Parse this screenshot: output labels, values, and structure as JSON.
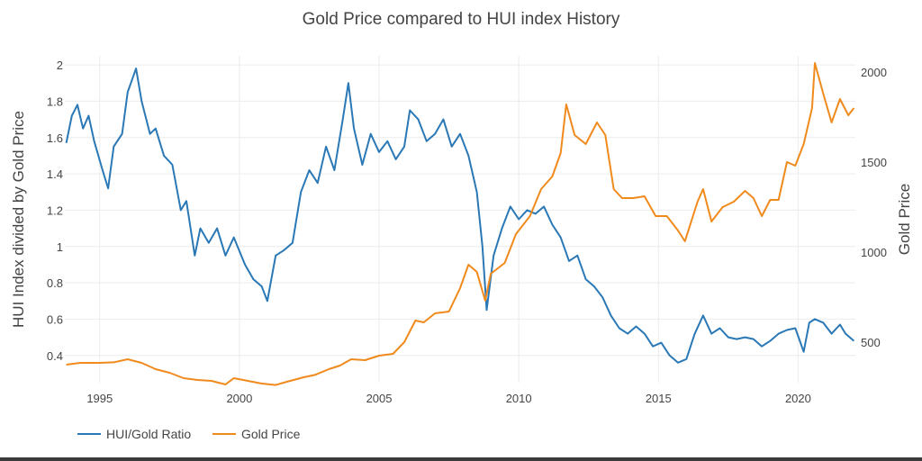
{
  "chart_data": {
    "type": "line",
    "title": "Gold Price compared to HUI index History",
    "ylabel": "HUI Index divided by Gold Price",
    "y2label": "Gold Price",
    "xlim": [
      1993.75,
      2022.05
    ],
    "ylim": [
      0.25,
      2.05
    ],
    "y2lim": [
      275,
      2090
    ],
    "x_ticks": [
      "1995",
      "2000",
      "2005",
      "2010",
      "2015",
      "2020"
    ],
    "y_ticks": [
      "0.4",
      "0.6",
      "0.8",
      "1",
      "1.2",
      "1.4",
      "1.6",
      "1.8",
      "2"
    ],
    "y2_ticks": [
      "500",
      "1000",
      "1500",
      "2000"
    ],
    "legend_position": "bottom-left",
    "grid": true,
    "series": [
      {
        "name": "HUI/Gold Ratio",
        "axis": "left",
        "color": "#2a78b5",
        "points": [
          [
            1993.8,
            1.57
          ],
          [
            1994.0,
            1.72
          ],
          [
            1994.2,
            1.78
          ],
          [
            1994.4,
            1.65
          ],
          [
            1994.6,
            1.72
          ],
          [
            1994.8,
            1.58
          ],
          [
            1995.1,
            1.42
          ],
          [
            1995.3,
            1.32
          ],
          [
            1995.5,
            1.55
          ],
          [
            1995.8,
            1.62
          ],
          [
            1996.0,
            1.85
          ],
          [
            1996.3,
            1.98
          ],
          [
            1996.5,
            1.8
          ],
          [
            1996.8,
            1.62
          ],
          [
            1997.0,
            1.65
          ],
          [
            1997.3,
            1.5
          ],
          [
            1997.6,
            1.45
          ],
          [
            1997.9,
            1.2
          ],
          [
            1998.1,
            1.25
          ],
          [
            1998.4,
            0.95
          ],
          [
            1998.6,
            1.1
          ],
          [
            1998.9,
            1.02
          ],
          [
            1999.2,
            1.1
          ],
          [
            1999.5,
            0.95
          ],
          [
            1999.8,
            1.05
          ],
          [
            2000.2,
            0.9
          ],
          [
            2000.5,
            0.82
          ],
          [
            2000.8,
            0.78
          ],
          [
            2001.0,
            0.7
          ],
          [
            2001.3,
            0.95
          ],
          [
            2001.6,
            0.98
          ],
          [
            2001.9,
            1.02
          ],
          [
            2002.2,
            1.3
          ],
          [
            2002.5,
            1.42
          ],
          [
            2002.8,
            1.35
          ],
          [
            2003.1,
            1.55
          ],
          [
            2003.4,
            1.42
          ],
          [
            2003.7,
            1.7
          ],
          [
            2003.9,
            1.9
          ],
          [
            2004.1,
            1.65
          ],
          [
            2004.4,
            1.45
          ],
          [
            2004.7,
            1.62
          ],
          [
            2005.0,
            1.52
          ],
          [
            2005.3,
            1.58
          ],
          [
            2005.6,
            1.48
          ],
          [
            2005.9,
            1.55
          ],
          [
            2006.1,
            1.75
          ],
          [
            2006.4,
            1.7
          ],
          [
            2006.7,
            1.58
          ],
          [
            2007.0,
            1.62
          ],
          [
            2007.3,
            1.7
          ],
          [
            2007.6,
            1.55
          ],
          [
            2007.9,
            1.62
          ],
          [
            2008.2,
            1.5
          ],
          [
            2008.5,
            1.3
          ],
          [
            2008.7,
            1.0
          ],
          [
            2008.85,
            0.65
          ],
          [
            2009.1,
            0.95
          ],
          [
            2009.4,
            1.1
          ],
          [
            2009.7,
            1.22
          ],
          [
            2010.0,
            1.15
          ],
          [
            2010.3,
            1.2
          ],
          [
            2010.6,
            1.18
          ],
          [
            2010.9,
            1.22
          ],
          [
            2011.2,
            1.12
          ],
          [
            2011.5,
            1.05
          ],
          [
            2011.8,
            0.92
          ],
          [
            2012.1,
            0.95
          ],
          [
            2012.4,
            0.82
          ],
          [
            2012.7,
            0.78
          ],
          [
            2013.0,
            0.72
          ],
          [
            2013.3,
            0.62
          ],
          [
            2013.6,
            0.55
          ],
          [
            2013.9,
            0.52
          ],
          [
            2014.2,
            0.56
          ],
          [
            2014.5,
            0.52
          ],
          [
            2014.8,
            0.45
          ],
          [
            2015.1,
            0.47
          ],
          [
            2015.4,
            0.4
          ],
          [
            2015.7,
            0.36
          ],
          [
            2016.0,
            0.38
          ],
          [
            2016.3,
            0.52
          ],
          [
            2016.6,
            0.62
          ],
          [
            2016.9,
            0.52
          ],
          [
            2017.2,
            0.55
          ],
          [
            2017.5,
            0.5
          ],
          [
            2017.8,
            0.49
          ],
          [
            2018.1,
            0.5
          ],
          [
            2018.4,
            0.49
          ],
          [
            2018.7,
            0.45
          ],
          [
            2019.0,
            0.48
          ],
          [
            2019.3,
            0.52
          ],
          [
            2019.6,
            0.54
          ],
          [
            2019.9,
            0.55
          ],
          [
            2020.2,
            0.42
          ],
          [
            2020.4,
            0.58
          ],
          [
            2020.6,
            0.6
          ],
          [
            2020.9,
            0.58
          ],
          [
            2021.2,
            0.52
          ],
          [
            2021.5,
            0.57
          ],
          [
            2021.7,
            0.52
          ],
          [
            2022.0,
            0.48
          ]
        ]
      },
      {
        "name": "Gold Price",
        "axis": "right",
        "color": "#f08a1d",
        "points": [
          [
            1993.8,
            375
          ],
          [
            1994.3,
            385
          ],
          [
            1995.0,
            385
          ],
          [
            1995.5,
            388
          ],
          [
            1996.0,
            405
          ],
          [
            1996.5,
            385
          ],
          [
            1997.0,
            350
          ],
          [
            1997.5,
            330
          ],
          [
            1998.0,
            300
          ],
          [
            1998.5,
            290
          ],
          [
            1999.0,
            285
          ],
          [
            1999.5,
            265
          ],
          [
            1999.8,
            300
          ],
          [
            2000.3,
            285
          ],
          [
            2000.8,
            270
          ],
          [
            2001.3,
            262
          ],
          [
            2001.7,
            280
          ],
          [
            2002.3,
            305
          ],
          [
            2002.7,
            318
          ],
          [
            2003.2,
            350
          ],
          [
            2003.6,
            370
          ],
          [
            2004.0,
            405
          ],
          [
            2004.5,
            400
          ],
          [
            2005.0,
            425
          ],
          [
            2005.5,
            435
          ],
          [
            2005.9,
            500
          ],
          [
            2006.3,
            620
          ],
          [
            2006.6,
            610
          ],
          [
            2007.0,
            660
          ],
          [
            2007.5,
            670
          ],
          [
            2007.9,
            800
          ],
          [
            2008.2,
            930
          ],
          [
            2008.5,
            890
          ],
          [
            2008.8,
            730
          ],
          [
            2009.0,
            880
          ],
          [
            2009.5,
            940
          ],
          [
            2009.9,
            1100
          ],
          [
            2010.4,
            1200
          ],
          [
            2010.8,
            1350
          ],
          [
            2011.2,
            1420
          ],
          [
            2011.5,
            1550
          ],
          [
            2011.7,
            1820
          ],
          [
            2012.0,
            1650
          ],
          [
            2012.4,
            1600
          ],
          [
            2012.8,
            1720
          ],
          [
            2013.1,
            1650
          ],
          [
            2013.4,
            1350
          ],
          [
            2013.7,
            1300
          ],
          [
            2014.1,
            1300
          ],
          [
            2014.5,
            1310
          ],
          [
            2014.9,
            1200
          ],
          [
            2015.3,
            1200
          ],
          [
            2015.7,
            1120
          ],
          [
            2015.95,
            1060
          ],
          [
            2016.4,
            1280
          ],
          [
            2016.6,
            1350
          ],
          [
            2016.9,
            1170
          ],
          [
            2017.3,
            1250
          ],
          [
            2017.7,
            1280
          ],
          [
            2018.1,
            1340
          ],
          [
            2018.4,
            1300
          ],
          [
            2018.7,
            1200
          ],
          [
            2019.0,
            1290
          ],
          [
            2019.3,
            1290
          ],
          [
            2019.6,
            1500
          ],
          [
            2019.9,
            1480
          ],
          [
            2020.2,
            1600
          ],
          [
            2020.5,
            1800
          ],
          [
            2020.6,
            2050
          ],
          [
            2020.9,
            1880
          ],
          [
            2021.2,
            1720
          ],
          [
            2021.5,
            1850
          ],
          [
            2021.8,
            1760
          ],
          [
            2022.0,
            1800
          ]
        ]
      }
    ]
  }
}
